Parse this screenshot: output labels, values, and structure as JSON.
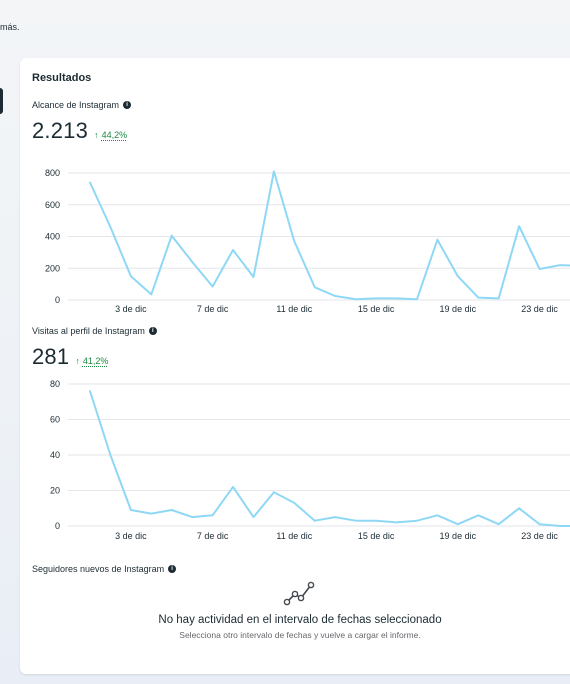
{
  "page": {
    "top_text": "más."
  },
  "results": {
    "title": "Resultados",
    "info_icon": "info-icon",
    "metrics": [
      {
        "label": "Alcance de Instagram",
        "value": "2.213",
        "delta": "44,2%",
        "delta_direction": "up"
      },
      {
        "label": "Visitas al perfil de Instagram",
        "value": "281",
        "delta": "41,2%",
        "delta_direction": "up"
      },
      {
        "label": "Seguidores nuevos de Instagram"
      }
    ],
    "empty_state": {
      "icon": "line-chart-icon",
      "title": "No hay actividad en el intervalo de fechas seleccionado",
      "subtitle": "Selecciona otro intervalo de fechas y vuelve a cargar el informe."
    }
  },
  "colors": {
    "series_line": "#8fd8f5",
    "positive_delta": "#1d8a43",
    "grid": "#e4e6eb",
    "text": "#1c2b33"
  },
  "chart_data": [
    {
      "type": "line",
      "title": "Alcance de Instagram",
      "x_ticks": [
        "3 de dic",
        "7 de dic",
        "11 de dic",
        "15 de dic",
        "19 de dic",
        "23 de dic"
      ],
      "x_days": [
        1,
        2,
        3,
        4,
        5,
        6,
        7,
        8,
        9,
        10,
        11,
        12,
        13,
        14,
        15,
        16,
        17,
        18,
        19,
        20,
        21,
        22,
        23,
        24,
        25
      ],
      "values": [
        740,
        460,
        150,
        35,
        405,
        240,
        85,
        315,
        145,
        810,
        370,
        80,
        25,
        5,
        10,
        10,
        5,
        380,
        150,
        15,
        10,
        465,
        195,
        220,
        215
      ],
      "y_ticks": [
        0,
        200,
        400,
        600,
        800
      ],
      "ylim": [
        0,
        800
      ],
      "grid": true
    },
    {
      "type": "line",
      "title": "Visitas al perfil de Instagram",
      "x_ticks": [
        "3 de dic",
        "7 de dic",
        "11 de dic",
        "15 de dic",
        "19 de dic",
        "23 de dic"
      ],
      "x_days": [
        1,
        2,
        3,
        4,
        5,
        6,
        7,
        8,
        9,
        10,
        11,
        12,
        13,
        14,
        15,
        16,
        17,
        18,
        19,
        20,
        21,
        22,
        23,
        24,
        25
      ],
      "values": [
        76,
        40,
        9,
        7,
        9,
        5,
        6,
        22,
        5,
        19,
        13,
        3,
        5,
        3,
        3,
        2,
        3,
        6,
        1,
        6,
        1,
        10,
        1,
        0,
        0
      ],
      "y_ticks": [
        0,
        20,
        40,
        60,
        80
      ],
      "ylim": [
        0,
        80
      ],
      "grid": true
    }
  ]
}
